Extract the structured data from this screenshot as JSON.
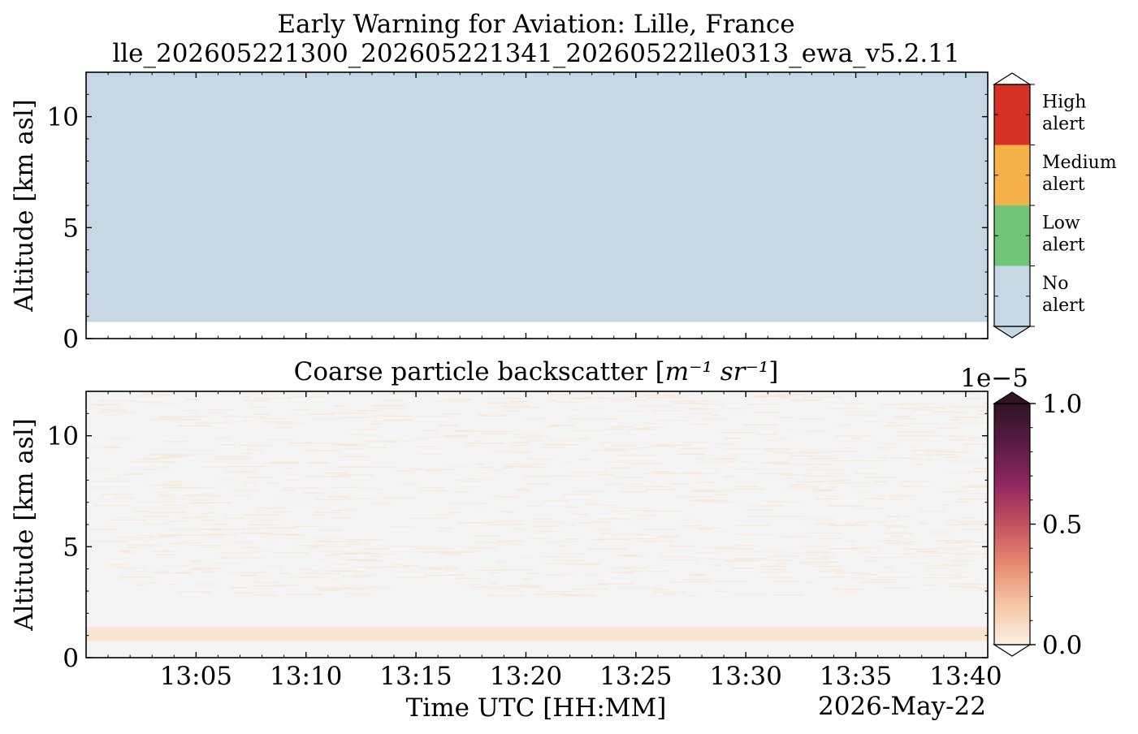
{
  "figure": {
    "title_line1": "Early Warning for Aviation: Lille, France",
    "title_line2": "lle_202605221300_202605221341_20260522lle0313_ewa_v5.2.11",
    "date_label": "2026-May-22",
    "xlabel": "Time UTC [HH:MM]"
  },
  "chart_data": [
    {
      "type": "heatmap",
      "name": "alert-panel",
      "ylabel": "Altitude [km asl]",
      "ylim": [
        0,
        12
      ],
      "yticks": [
        "0",
        "5",
        "10"
      ],
      "xlim": [
        "13:00",
        "13:41"
      ],
      "xticks": [
        "13:05",
        "13:10",
        "13:15",
        "13:20",
        "13:25",
        "13:30",
        "13:35",
        "13:40"
      ],
      "fill": {
        "level": "No alert",
        "altitude_from_km": 0.75,
        "altitude_to_km": 12
      },
      "colorbar": {
        "categories": [
          {
            "label_line1": "High",
            "label_line2": "alert",
            "color": "#d73027"
          },
          {
            "label_line1": "Medium",
            "label_line2": "alert",
            "color": "#f6b24a"
          },
          {
            "label_line1": "Low",
            "label_line2": "alert",
            "color": "#72c476"
          },
          {
            "label_line1": "No",
            "label_line2": "alert",
            "color": "#c5d8e3"
          }
        ]
      }
    },
    {
      "type": "heatmap",
      "name": "backscatter-panel",
      "title_text": "Coarse particle backscatter [",
      "title_math": "m⁻¹ sr⁻¹",
      "title_close": "]",
      "ylabel": "Altitude [km asl]",
      "ylim": [
        0,
        12
      ],
      "yticks": [
        "0",
        "5",
        "10"
      ],
      "xlim": [
        "13:00",
        "13:41"
      ],
      "xticks": [
        "13:05",
        "13:10",
        "13:15",
        "13:20",
        "13:25",
        "13:30",
        "13:35",
        "13:40"
      ],
      "background_color": "#f4f4f4",
      "low_layer": {
        "altitude_from_km": 0.75,
        "altitude_to_km": 1.4,
        "color": "#f8e6d2"
      },
      "colorbar": {
        "min": 0.0,
        "max": 1.0,
        "ticks": [
          "0.0",
          "0.5",
          "1.0"
        ],
        "offset": "1e−5",
        "colors": [
          "#fbf0e3",
          "#f4c6a5",
          "#e68a72",
          "#c4515f",
          "#8f265f",
          "#5a1a45",
          "#2f1424"
        ]
      }
    }
  ]
}
